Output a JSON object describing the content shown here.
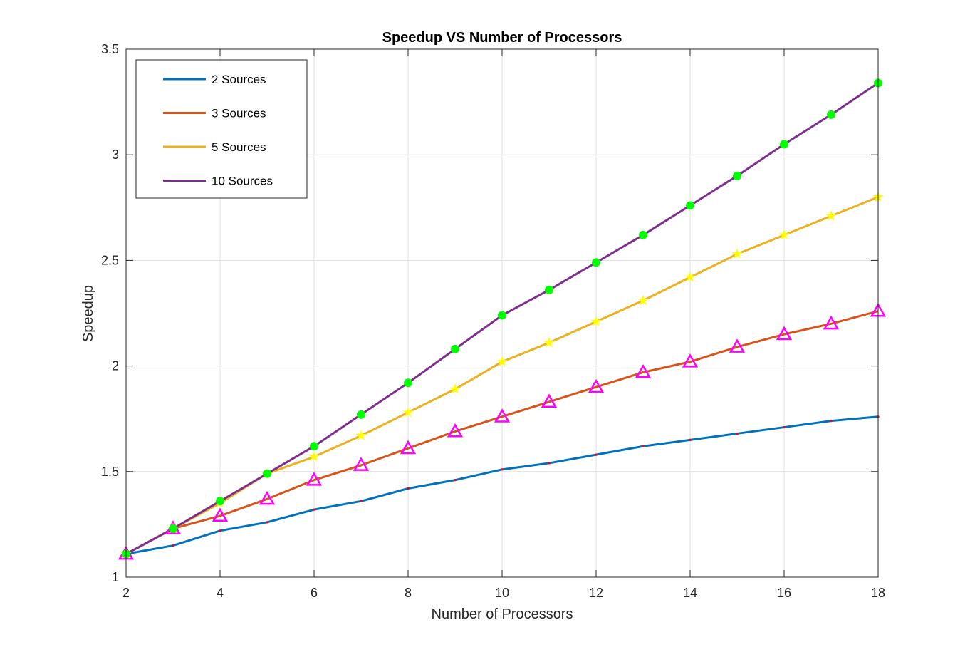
{
  "chart_data": {
    "type": "line",
    "title": "Speedup VS Number of Processors",
    "xlabel": "Number of Processors",
    "ylabel": "Speedup",
    "xlim": [
      2,
      18
    ],
    "ylim": [
      1,
      3.5
    ],
    "x_ticks": [
      2,
      4,
      6,
      8,
      10,
      12,
      14,
      16,
      18
    ],
    "y_ticks": [
      1,
      1.5,
      2,
      2.5,
      3,
      3.5
    ],
    "y_tick_labels": [
      "1",
      "1.5",
      "2",
      "2.5",
      "3",
      "3.5"
    ],
    "grid": true,
    "legend_position": "top-left",
    "x": [
      2,
      3,
      4,
      5,
      6,
      7,
      8,
      9,
      10,
      11,
      12,
      13,
      14,
      15,
      16,
      17,
      18
    ],
    "series": [
      {
        "name": "2 Sources",
        "color": "#0072BD",
        "marker": "dot",
        "marker_color": "#FF0000",
        "values": [
          1.11,
          1.15,
          1.22,
          1.26,
          1.32,
          1.36,
          1.42,
          1.46,
          1.51,
          1.54,
          1.58,
          1.62,
          1.65,
          1.68,
          1.71,
          1.74,
          1.76
        ]
      },
      {
        "name": "3 Sources",
        "color": "#D95319",
        "marker": "triangle",
        "marker_color": "#FF00FF",
        "values": [
          1.11,
          1.23,
          1.29,
          1.37,
          1.46,
          1.53,
          1.61,
          1.69,
          1.76,
          1.83,
          1.9,
          1.97,
          2.02,
          2.09,
          2.15,
          2.2,
          2.26
        ]
      },
      {
        "name": "5 Sources",
        "color": "#EDB120",
        "marker": "star",
        "marker_color": "#FFFF00",
        "values": [
          1.11,
          1.23,
          1.35,
          1.49,
          1.57,
          1.67,
          1.78,
          1.89,
          2.02,
          2.11,
          2.21,
          2.31,
          2.42,
          2.53,
          2.62,
          2.71,
          2.8
        ]
      },
      {
        "name": "10 Sources",
        "color": "#7E2F8E",
        "marker": "circle",
        "marker_color": "#00FF00",
        "values": [
          1.11,
          1.23,
          1.36,
          1.49,
          1.62,
          1.77,
          1.92,
          2.08,
          2.24,
          2.36,
          2.49,
          2.62,
          2.76,
          2.9,
          3.05,
          3.19,
          3.34
        ]
      }
    ]
  }
}
